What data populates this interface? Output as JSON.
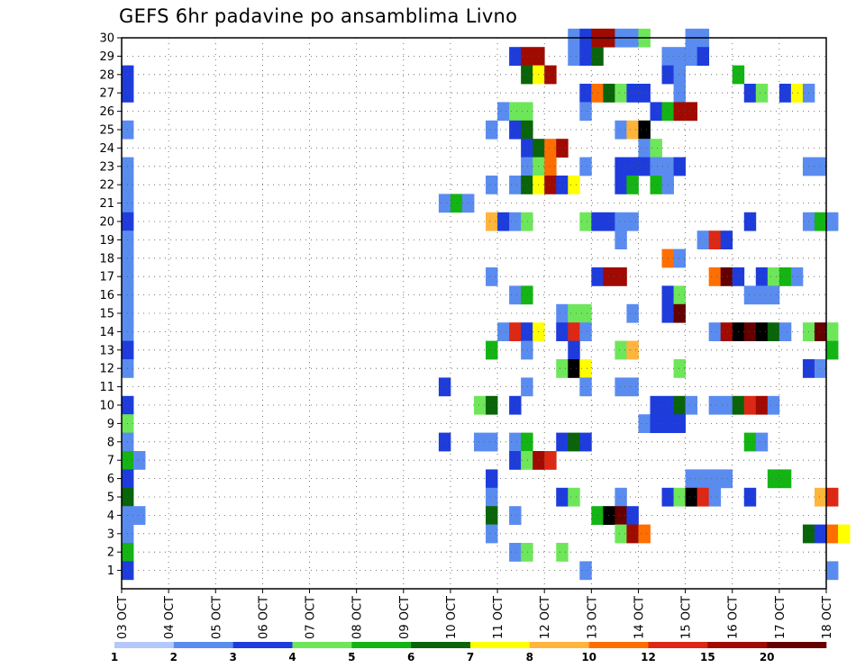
{
  "chart_data": {
    "type": "heatmap",
    "title": "GEFS 6hr padavine po ansamblima Livno",
    "xlabel": "",
    "ylabel": "",
    "x_ticks": [
      "03 OCT",
      "04 OCT",
      "05 OCT",
      "06 OCT",
      "07 OCT",
      "08 OCT",
      "09 OCT",
      "10 OCT",
      "11 OCT",
      "12 OCT",
      "13 OCT",
      "14 OCT",
      "15 OCT",
      "16 OCT",
      "17 OCT",
      "18 OCT"
    ],
    "y_ticks": [
      1,
      2,
      3,
      4,
      5,
      6,
      7,
      8,
      9,
      10,
      11,
      12,
      13,
      14,
      15,
      16,
      17,
      18,
      19,
      20,
      21,
      22,
      23,
      24,
      25,
      26,
      27,
      28,
      29,
      30
    ],
    "ylim": [
      0,
      30
    ],
    "x_step_hours": 6,
    "grid": true,
    "colorbar": {
      "labels": [
        "1",
        "2",
        "3",
        "4",
        "5",
        "6",
        "7",
        "8",
        "10",
        "12",
        "15",
        "20"
      ],
      "colors": [
        "#b4c8fa",
        "#5a8cf0",
        "#1e3cdc",
        "#6ee65a",
        "#14b414",
        "#0a640a",
        "#ffff00",
        "#ffb43c",
        "#ff6e00",
        "#dc2814",
        "#a00a00",
        "#640000"
      ]
    },
    "cells": [
      [
        30,
        38,
        1
      ],
      [
        30,
        39,
        2
      ],
      [
        30,
        40,
        10
      ],
      [
        30,
        41,
        10
      ],
      [
        30,
        42,
        1
      ],
      [
        30,
        43,
        1
      ],
      [
        30,
        44,
        3
      ],
      [
        30,
        48,
        1
      ],
      [
        30,
        49,
        1
      ],
      [
        29,
        33,
        2
      ],
      [
        29,
        34,
        10
      ],
      [
        29,
        35,
        10
      ],
      [
        29,
        38,
        1
      ],
      [
        29,
        39,
        2
      ],
      [
        29,
        40,
        5
      ],
      [
        29,
        46,
        1
      ],
      [
        29,
        47,
        1
      ],
      [
        29,
        48,
        1
      ],
      [
        29,
        49,
        2
      ],
      [
        28,
        0,
        2
      ],
      [
        28,
        34,
        5
      ],
      [
        28,
        35,
        6
      ],
      [
        28,
        36,
        10
      ],
      [
        28,
        46,
        2
      ],
      [
        28,
        47,
        1
      ],
      [
        28,
        52,
        4
      ],
      [
        27,
        0,
        2
      ],
      [
        27,
        39,
        2
      ],
      [
        27,
        40,
        8
      ],
      [
        27,
        41,
        5
      ],
      [
        27,
        42,
        3
      ],
      [
        27,
        43,
        2
      ],
      [
        27,
        44,
        2
      ],
      [
        27,
        47,
        1
      ],
      [
        27,
        53,
        2
      ],
      [
        27,
        54,
        3
      ],
      [
        27,
        56,
        2
      ],
      [
        27,
        57,
        6
      ],
      [
        27,
        58,
        1
      ],
      [
        26,
        32,
        1
      ],
      [
        26,
        33,
        3
      ],
      [
        26,
        34,
        3
      ],
      [
        26,
        39,
        1
      ],
      [
        26,
        45,
        2
      ],
      [
        26,
        46,
        4
      ],
      [
        26,
        47,
        10
      ],
      [
        26,
        48,
        10
      ],
      [
        25,
        0,
        1
      ],
      [
        25,
        31,
        1
      ],
      [
        25,
        33,
        2
      ],
      [
        25,
        34,
        5
      ],
      [
        25,
        42,
        1
      ],
      [
        25,
        43,
        7
      ],
      [
        25,
        44,
        12
      ],
      [
        24,
        34,
        2
      ],
      [
        24,
        35,
        5
      ],
      [
        24,
        36,
        8
      ],
      [
        24,
        37,
        10
      ],
      [
        24,
        44,
        1
      ],
      [
        24,
        45,
        3
      ],
      [
        23,
        0,
        1
      ],
      [
        23,
        34,
        1
      ],
      [
        23,
        35,
        3
      ],
      [
        23,
        36,
        8
      ],
      [
        23,
        39,
        1
      ],
      [
        23,
        42,
        2
      ],
      [
        23,
        43,
        2
      ],
      [
        23,
        44,
        2
      ],
      [
        23,
        45,
        1
      ],
      [
        23,
        46,
        1
      ],
      [
        23,
        47,
        2
      ],
      [
        23,
        58,
        1
      ],
      [
        23,
        59,
        1
      ],
      [
        22,
        0,
        1
      ],
      [
        22,
        31,
        1
      ],
      [
        22,
        33,
        1
      ],
      [
        22,
        34,
        5
      ],
      [
        22,
        35,
        6
      ],
      [
        22,
        36,
        10
      ],
      [
        22,
        37,
        2
      ],
      [
        22,
        38,
        6
      ],
      [
        22,
        42,
        2
      ],
      [
        22,
        43,
        4
      ],
      [
        22,
        45,
        4
      ],
      [
        22,
        46,
        1
      ],
      [
        21,
        0,
        1
      ],
      [
        21,
        27,
        1
      ],
      [
        21,
        28,
        4
      ],
      [
        21,
        29,
        1
      ],
      [
        20,
        0,
        2
      ],
      [
        20,
        31,
        7
      ],
      [
        20,
        32,
        2
      ],
      [
        20,
        33,
        1
      ],
      [
        20,
        34,
        3
      ],
      [
        20,
        39,
        3
      ],
      [
        20,
        40,
        2
      ],
      [
        20,
        41,
        2
      ],
      [
        20,
        42,
        1
      ],
      [
        20,
        43,
        1
      ],
      [
        20,
        53,
        2
      ],
      [
        20,
        58,
        1
      ],
      [
        20,
        59,
        4
      ],
      [
        20,
        60,
        1
      ],
      [
        19,
        0,
        1
      ],
      [
        19,
        42,
        1
      ],
      [
        19,
        49,
        1
      ],
      [
        19,
        50,
        9
      ],
      [
        19,
        51,
        2
      ],
      [
        18,
        0,
        1
      ],
      [
        18,
        46,
        8
      ],
      [
        18,
        47,
        1
      ],
      [
        17,
        0,
        1
      ],
      [
        17,
        31,
        1
      ],
      [
        17,
        40,
        2
      ],
      [
        17,
        41,
        10
      ],
      [
        17,
        42,
        10
      ],
      [
        17,
        50,
        8
      ],
      [
        17,
        51,
        11
      ],
      [
        17,
        52,
        2
      ],
      [
        17,
        54,
        2
      ],
      [
        17,
        55,
        3
      ],
      [
        17,
        56,
        4
      ],
      [
        17,
        57,
        1
      ],
      [
        16,
        0,
        1
      ],
      [
        16,
        33,
        1
      ],
      [
        16,
        34,
        4
      ],
      [
        16,
        46,
        2
      ],
      [
        16,
        47,
        3
      ],
      [
        16,
        53,
        1
      ],
      [
        16,
        54,
        1
      ],
      [
        16,
        55,
        1
      ],
      [
        15,
        0,
        1
      ],
      [
        15,
        37,
        1
      ],
      [
        15,
        38,
        3
      ],
      [
        15,
        39,
        3
      ],
      [
        15,
        43,
        1
      ],
      [
        15,
        46,
        2
      ],
      [
        15,
        47,
        11
      ],
      [
        14,
        0,
        1
      ],
      [
        14,
        32,
        1
      ],
      [
        14,
        33,
        9
      ],
      [
        14,
        34,
        2
      ],
      [
        14,
        35,
        6
      ],
      [
        14,
        37,
        2
      ],
      [
        14,
        38,
        9
      ],
      [
        14,
        39,
        1
      ],
      [
        14,
        50,
        1
      ],
      [
        14,
        51,
        10
      ],
      [
        14,
        52,
        12
      ],
      [
        14,
        53,
        11
      ],
      [
        14,
        54,
        12
      ],
      [
        14,
        55,
        5
      ],
      [
        14,
        56,
        1
      ],
      [
        14,
        58,
        3
      ],
      [
        14,
        59,
        11
      ],
      [
        14,
        60,
        3
      ],
      [
        13,
        0,
        2
      ],
      [
        13,
        31,
        4
      ],
      [
        13,
        34,
        1
      ],
      [
        13,
        38,
        2
      ],
      [
        13,
        42,
        3
      ],
      [
        13,
        43,
        7
      ],
      [
        13,
        60,
        4
      ],
      [
        12,
        0,
        1
      ],
      [
        12,
        37,
        3
      ],
      [
        12,
        38,
        12
      ],
      [
        12,
        39,
        6
      ],
      [
        12,
        47,
        3
      ],
      [
        12,
        58,
        2
      ],
      [
        12,
        59,
        1
      ],
      [
        11,
        27,
        2
      ],
      [
        11,
        34,
        1
      ],
      [
        11,
        39,
        1
      ],
      [
        11,
        42,
        1
      ],
      [
        11,
        43,
        1
      ],
      [
        10,
        0,
        2
      ],
      [
        10,
        30,
        3
      ],
      [
        10,
        31,
        5
      ],
      [
        10,
        33,
        2
      ],
      [
        10,
        45,
        2
      ],
      [
        10,
        46,
        2
      ],
      [
        10,
        47,
        5
      ],
      [
        10,
        48,
        1
      ],
      [
        10,
        50,
        1
      ],
      [
        10,
        51,
        1
      ],
      [
        10,
        52,
        5
      ],
      [
        10,
        53,
        9
      ],
      [
        10,
        54,
        10
      ],
      [
        10,
        55,
        1
      ],
      [
        9,
        0,
        3
      ],
      [
        9,
        44,
        1
      ],
      [
        9,
        45,
        2
      ],
      [
        9,
        46,
        2
      ],
      [
        9,
        47,
        2
      ],
      [
        8,
        0,
        1
      ],
      [
        8,
        27,
        2
      ],
      [
        8,
        30,
        1
      ],
      [
        8,
        31,
        1
      ],
      [
        8,
        33,
        1
      ],
      [
        8,
        34,
        4
      ],
      [
        8,
        37,
        2
      ],
      [
        8,
        38,
        5
      ],
      [
        8,
        39,
        2
      ],
      [
        8,
        53,
        4
      ],
      [
        8,
        54,
        1
      ],
      [
        7,
        0,
        4
      ],
      [
        7,
        1,
        1
      ],
      [
        7,
        33,
        2
      ],
      [
        7,
        34,
        3
      ],
      [
        7,
        35,
        10
      ],
      [
        7,
        36,
        9
      ],
      [
        6,
        0,
        2
      ],
      [
        6,
        31,
        2
      ],
      [
        6,
        48,
        1
      ],
      [
        6,
        49,
        1
      ],
      [
        6,
        50,
        1
      ],
      [
        6,
        51,
        1
      ],
      [
        6,
        55,
        4
      ],
      [
        6,
        56,
        4
      ],
      [
        5,
        0,
        5
      ],
      [
        5,
        31,
        1
      ],
      [
        5,
        37,
        2
      ],
      [
        5,
        38,
        3
      ],
      [
        5,
        42,
        1
      ],
      [
        5,
        46,
        2
      ],
      [
        5,
        47,
        3
      ],
      [
        5,
        48,
        12
      ],
      [
        5,
        49,
        9
      ],
      [
        5,
        50,
        1
      ],
      [
        5,
        53,
        2
      ],
      [
        5,
        59,
        7
      ],
      [
        5,
        60,
        9
      ],
      [
        4,
        0,
        1
      ],
      [
        4,
        1,
        1
      ],
      [
        4,
        31,
        5
      ],
      [
        4,
        33,
        1
      ],
      [
        4,
        40,
        4
      ],
      [
        4,
        41,
        12
      ],
      [
        4,
        42,
        11
      ],
      [
        4,
        43,
        2
      ],
      [
        3,
        0,
        1
      ],
      [
        3,
        31,
        1
      ],
      [
        3,
        42,
        3
      ],
      [
        3,
        43,
        10
      ],
      [
        3,
        44,
        8
      ],
      [
        3,
        58,
        5
      ],
      [
        3,
        59,
        2
      ],
      [
        3,
        60,
        8
      ],
      [
        3,
        61,
        6
      ],
      [
        2,
        0,
        4
      ],
      [
        2,
        33,
        1
      ],
      [
        2,
        34,
        3
      ],
      [
        2,
        37,
        3
      ],
      [
        1,
        0,
        2
      ],
      [
        1,
        39,
        1
      ],
      [
        1,
        60,
        1
      ]
    ]
  }
}
